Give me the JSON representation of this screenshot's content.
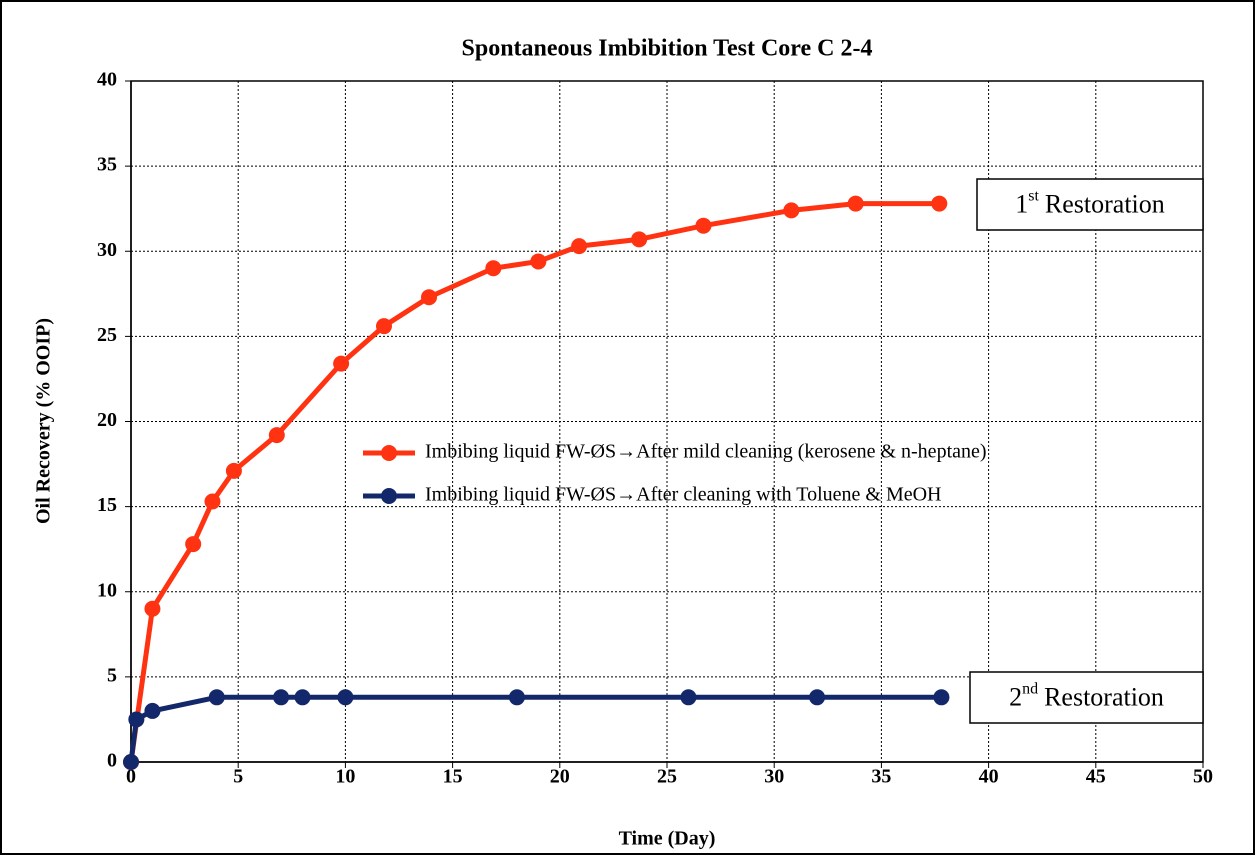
{
  "chart_data": {
    "type": "line",
    "title": "Spontaneous Imbibition Test Core C 2-4",
    "x_label": "Time (Day)",
    "y_label": "Oil Recovery (% OOIP)",
    "xlim": [
      0,
      50
    ],
    "xticks": [
      0,
      5,
      10,
      15,
      20,
      25,
      30,
      35,
      40,
      45,
      50
    ],
    "ylim": [
      0,
      40
    ],
    "yticks": [
      0,
      5,
      10,
      15,
      20,
      25,
      30,
      35,
      40
    ],
    "grid": true,
    "series": [
      {
        "name": "Imbibing liquid FW-ØS→After mild cleaning (kerosene & n-heptane)",
        "color": "#ff3311",
        "x": [
          0,
          1,
          2.9,
          3.8,
          4.8,
          6.8,
          9.8,
          11.8,
          13.9,
          16.9,
          19,
          20.9,
          23.7,
          26.7,
          30.8,
          33.8,
          37.7
        ],
        "values": [
          0,
          9,
          12.8,
          15.3,
          17.1,
          19.2,
          23.4,
          25.6,
          27.3,
          29,
          29.4,
          30.3,
          30.7,
          31.5,
          32.4,
          32.8,
          32.8
        ]
      },
      {
        "name": "Imbibing liquid FW-ØS→After cleaning with Toluene & MeOH",
        "color": "#12286b",
        "x": [
          0,
          0.25,
          1,
          4,
          7,
          8,
          10,
          18,
          26,
          32,
          37.8
        ],
        "values": [
          0,
          2.5,
          3,
          3.8,
          3.8,
          3.8,
          3.8,
          3.8,
          3.8,
          3.8,
          3.8
        ]
      }
    ],
    "annotations": [
      {
        "number": "1",
        "suffix": "st",
        "text": "Restoration"
      },
      {
        "number": "2",
        "suffix": "nd",
        "text": "Restoration"
      }
    ]
  }
}
